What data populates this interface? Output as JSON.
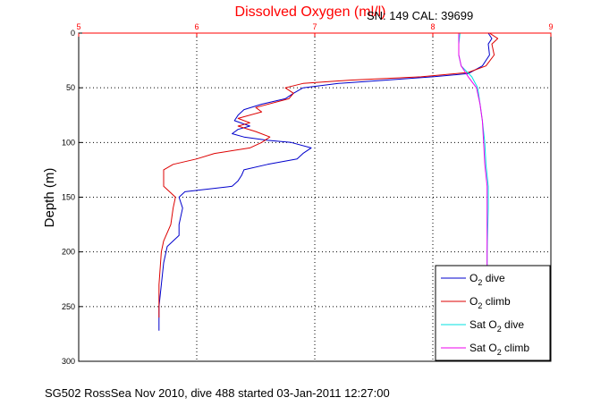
{
  "chart_data": {
    "type": "line",
    "title": "Dissolved Oxygen (ml/l)",
    "sn_cal": "SN: 149  CAL: 39699",
    "ylabel": "Depth (m)",
    "footer": "SG502 RossSea Nov 2010, dive 488 started 03-Jan-2011 12:27:00",
    "xlim": [
      5,
      9
    ],
    "ylim": [
      0,
      300
    ],
    "y_reversed": true,
    "x_axis_position": "top",
    "grid": true,
    "legend_position": "bottom-right",
    "x_ticks": [
      "5",
      "6",
      "7",
      "8",
      "9"
    ],
    "y_ticks": [
      "0",
      "50",
      "100",
      "150",
      "200",
      "250",
      "300"
    ],
    "colors": {
      "title": "#ff0000",
      "x_axis": "#ff0000",
      "y_axis": "#000000"
    },
    "series": [
      {
        "name": "O2 dive",
        "legend": {
          "prefix": "O",
          "sub": "2",
          "suffix": " dive"
        },
        "color": "#0000cc",
        "points": [
          [
            8.47,
            0
          ],
          [
            8.5,
            5
          ],
          [
            8.47,
            10
          ],
          [
            8.48,
            20
          ],
          [
            8.42,
            30
          ],
          [
            8.3,
            37
          ],
          [
            8.0,
            40
          ],
          [
            7.6,
            43
          ],
          [
            7.2,
            46
          ],
          [
            6.9,
            50
          ],
          [
            6.82,
            55
          ],
          [
            6.75,
            60
          ],
          [
            6.55,
            65
          ],
          [
            6.4,
            70
          ],
          [
            6.35,
            75
          ],
          [
            6.32,
            80
          ],
          [
            6.45,
            85
          ],
          [
            6.35,
            88
          ],
          [
            6.3,
            92
          ],
          [
            6.4,
            95
          ],
          [
            6.6,
            98
          ],
          [
            6.8,
            100
          ],
          [
            6.97,
            105
          ],
          [
            6.9,
            110
          ],
          [
            6.85,
            115
          ],
          [
            6.6,
            120
          ],
          [
            6.4,
            125
          ],
          [
            6.38,
            130
          ],
          [
            6.35,
            135
          ],
          [
            6.3,
            140
          ],
          [
            5.9,
            145
          ],
          [
            5.85,
            150
          ],
          [
            5.88,
            160
          ],
          [
            5.85,
            175
          ],
          [
            5.85,
            185
          ],
          [
            5.75,
            195
          ],
          [
            5.72,
            210
          ],
          [
            5.7,
            230
          ],
          [
            5.68,
            250
          ],
          [
            5.68,
            265
          ],
          [
            5.68,
            272
          ]
        ]
      },
      {
        "name": "O2 climb",
        "legend": {
          "prefix": "O",
          "sub": "2",
          "suffix": " climb"
        },
        "color": "#dd0000",
        "points": [
          [
            8.48,
            0
          ],
          [
            8.55,
            5
          ],
          [
            8.5,
            10
          ],
          [
            8.52,
            20
          ],
          [
            8.45,
            30
          ],
          [
            8.3,
            36
          ],
          [
            7.9,
            40
          ],
          [
            7.3,
            43
          ],
          [
            6.9,
            46
          ],
          [
            6.75,
            50
          ],
          [
            6.82,
            55
          ],
          [
            6.78,
            60
          ],
          [
            6.5,
            68
          ],
          [
            6.55,
            72
          ],
          [
            6.35,
            78
          ],
          [
            6.45,
            82
          ],
          [
            6.35,
            85
          ],
          [
            6.5,
            90
          ],
          [
            6.62,
            95
          ],
          [
            6.55,
            100
          ],
          [
            6.45,
            105
          ],
          [
            6.15,
            110
          ],
          [
            6.0,
            115
          ],
          [
            5.8,
            120
          ],
          [
            5.72,
            125
          ],
          [
            5.72,
            140
          ],
          [
            5.82,
            150
          ],
          [
            5.8,
            160
          ],
          [
            5.78,
            175
          ],
          [
            5.72,
            190
          ],
          [
            5.7,
            200
          ],
          [
            5.68,
            230
          ],
          [
            5.68,
            260
          ]
        ]
      },
      {
        "name": "Sat O2 dive",
        "legend": {
          "prefix": "Sat O",
          "sub": "2",
          "suffix": " dive"
        },
        "color": "#00e0e0",
        "points": [
          [
            8.23,
            0
          ],
          [
            8.22,
            10
          ],
          [
            8.22,
            20
          ],
          [
            8.24,
            30
          ],
          [
            8.33,
            40
          ],
          [
            8.38,
            50
          ],
          [
            8.4,
            65
          ],
          [
            8.42,
            80
          ],
          [
            8.44,
            100
          ],
          [
            8.45,
            120
          ],
          [
            8.47,
            140
          ],
          [
            8.47,
            160
          ],
          [
            8.46,
            200
          ],
          [
            8.46,
            250
          ],
          [
            8.46,
            300
          ]
        ]
      },
      {
        "name": "Sat O2 climb",
        "legend": {
          "prefix": "Sat O",
          "sub": "2",
          "suffix": " climb"
        },
        "color": "#ee00ee",
        "points": [
          [
            8.22,
            0
          ],
          [
            8.22,
            10
          ],
          [
            8.22,
            20
          ],
          [
            8.24,
            30
          ],
          [
            8.3,
            40
          ],
          [
            8.37,
            50
          ],
          [
            8.4,
            65
          ],
          [
            8.42,
            80
          ],
          [
            8.43,
            100
          ],
          [
            8.44,
            120
          ],
          [
            8.46,
            140
          ],
          [
            8.46,
            160
          ],
          [
            8.46,
            200
          ],
          [
            8.46,
            250
          ],
          [
            8.46,
            300
          ]
        ]
      }
    ]
  }
}
